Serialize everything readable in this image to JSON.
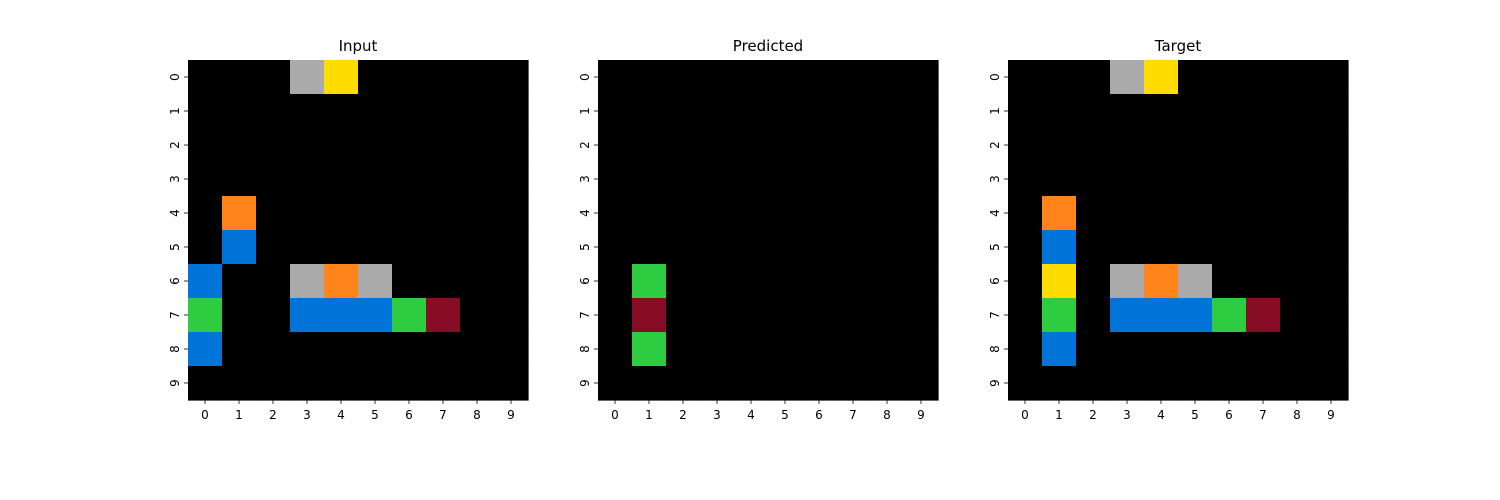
{
  "palette": {
    "0": "#000000",
    "1": "#0074D9",
    "2": "#FF4136",
    "3": "#2ECC40",
    "4": "#FFDC00",
    "5": "#AAAAAA",
    "6": "#F012BE",
    "7": "#FF851B",
    "8": "#7FDBFF",
    "9": "#870C25"
  },
  "chart_data": [
    {
      "type": "heatmap",
      "title": "Input",
      "x_ticks": [
        "0",
        "1",
        "2",
        "3",
        "4",
        "5",
        "6",
        "7",
        "8",
        "9"
      ],
      "y_ticks": [
        "0",
        "1",
        "2",
        "3",
        "4",
        "5",
        "6",
        "7",
        "8",
        "9"
      ],
      "grid": [
        [
          0,
          0,
          0,
          5,
          4,
          0,
          0,
          0,
          0,
          0
        ],
        [
          0,
          0,
          0,
          0,
          0,
          0,
          0,
          0,
          0,
          0
        ],
        [
          0,
          0,
          0,
          0,
          0,
          0,
          0,
          0,
          0,
          0
        ],
        [
          0,
          0,
          0,
          0,
          0,
          0,
          0,
          0,
          0,
          0
        ],
        [
          0,
          7,
          0,
          0,
          0,
          0,
          0,
          0,
          0,
          0
        ],
        [
          0,
          1,
          0,
          0,
          0,
          0,
          0,
          0,
          0,
          0
        ],
        [
          1,
          0,
          0,
          5,
          7,
          5,
          0,
          0,
          0,
          0
        ],
        [
          3,
          0,
          0,
          1,
          1,
          1,
          3,
          9,
          0,
          0
        ],
        [
          1,
          0,
          0,
          0,
          0,
          0,
          0,
          0,
          0,
          0
        ],
        [
          0,
          0,
          0,
          0,
          0,
          0,
          0,
          0,
          0,
          0
        ]
      ]
    },
    {
      "type": "heatmap",
      "title": "Predicted",
      "x_ticks": [
        "0",
        "1",
        "2",
        "3",
        "4",
        "5",
        "6",
        "7",
        "8",
        "9"
      ],
      "y_ticks": [
        "0",
        "1",
        "2",
        "3",
        "4",
        "5",
        "6",
        "7",
        "8",
        "9"
      ],
      "grid": [
        [
          0,
          0,
          0,
          0,
          0,
          0,
          0,
          0,
          0,
          0
        ],
        [
          0,
          0,
          0,
          0,
          0,
          0,
          0,
          0,
          0,
          0
        ],
        [
          0,
          0,
          0,
          0,
          0,
          0,
          0,
          0,
          0,
          0
        ],
        [
          0,
          0,
          0,
          0,
          0,
          0,
          0,
          0,
          0,
          0
        ],
        [
          0,
          0,
          0,
          0,
          0,
          0,
          0,
          0,
          0,
          0
        ],
        [
          0,
          0,
          0,
          0,
          0,
          0,
          0,
          0,
          0,
          0
        ],
        [
          0,
          3,
          0,
          0,
          0,
          0,
          0,
          0,
          0,
          0
        ],
        [
          0,
          9,
          0,
          0,
          0,
          0,
          0,
          0,
          0,
          0
        ],
        [
          0,
          3,
          0,
          0,
          0,
          0,
          0,
          0,
          0,
          0
        ],
        [
          0,
          0,
          0,
          0,
          0,
          0,
          0,
          0,
          0,
          0
        ]
      ]
    },
    {
      "type": "heatmap",
      "title": "Target",
      "x_ticks": [
        "0",
        "1",
        "2",
        "3",
        "4",
        "5",
        "6",
        "7",
        "8",
        "9"
      ],
      "y_ticks": [
        "0",
        "1",
        "2",
        "3",
        "4",
        "5",
        "6",
        "7",
        "8",
        "9"
      ],
      "grid": [
        [
          0,
          0,
          0,
          5,
          4,
          0,
          0,
          0,
          0,
          0
        ],
        [
          0,
          0,
          0,
          0,
          0,
          0,
          0,
          0,
          0,
          0
        ],
        [
          0,
          0,
          0,
          0,
          0,
          0,
          0,
          0,
          0,
          0
        ],
        [
          0,
          0,
          0,
          0,
          0,
          0,
          0,
          0,
          0,
          0
        ],
        [
          0,
          7,
          0,
          0,
          0,
          0,
          0,
          0,
          0,
          0
        ],
        [
          0,
          1,
          0,
          0,
          0,
          0,
          0,
          0,
          0,
          0
        ],
        [
          0,
          4,
          0,
          5,
          7,
          5,
          0,
          0,
          0,
          0
        ],
        [
          0,
          3,
          0,
          1,
          1,
          1,
          3,
          9,
          0,
          0
        ],
        [
          0,
          1,
          0,
          0,
          0,
          0,
          0,
          0,
          0,
          0
        ],
        [
          0,
          0,
          0,
          0,
          0,
          0,
          0,
          0,
          0,
          0
        ]
      ]
    }
  ]
}
